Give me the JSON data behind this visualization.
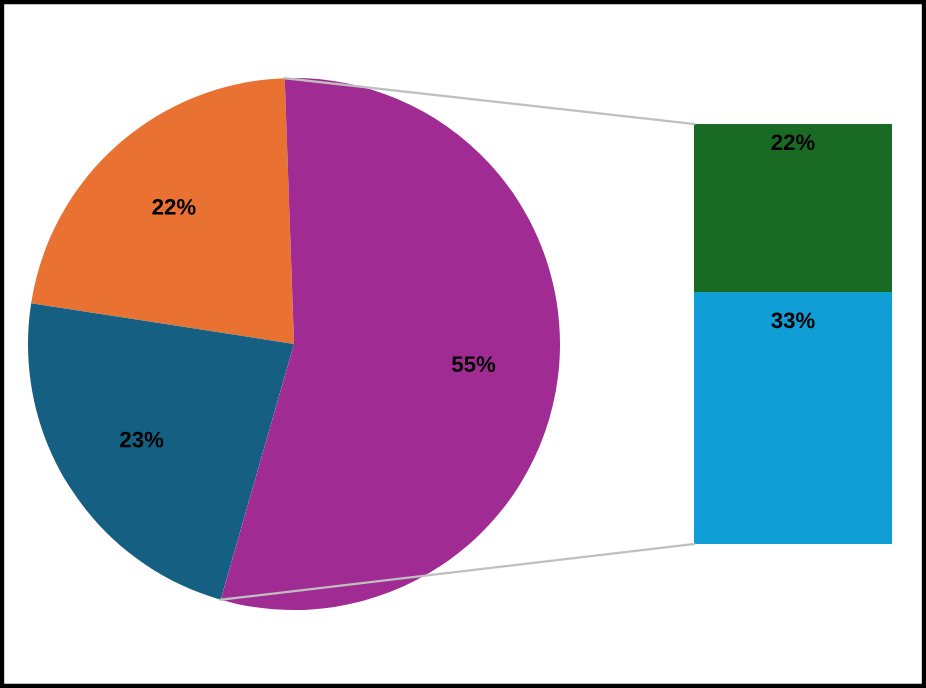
{
  "chart_data": [
    {
      "type": "pie",
      "categories": [
        null,
        null,
        null
      ],
      "values": [
        22,
        23,
        55
      ],
      "value_labels": [
        "22%",
        "23%",
        "55%"
      ],
      "colors": [
        "#e97132",
        "#156082",
        "#a02b93"
      ]
    },
    {
      "type": "bar",
      "stacked": true,
      "categories": [
        null
      ],
      "tick_labels": false,
      "series": [
        {
          "color": "#0f9ed5",
          "values": [
            33
          ],
          "value_labels": [
            "33%"
          ]
        },
        {
          "color": "#196b24",
          "values": [
            22
          ],
          "value_labels": [
            "22%"
          ]
        }
      ]
    }
  ]
}
